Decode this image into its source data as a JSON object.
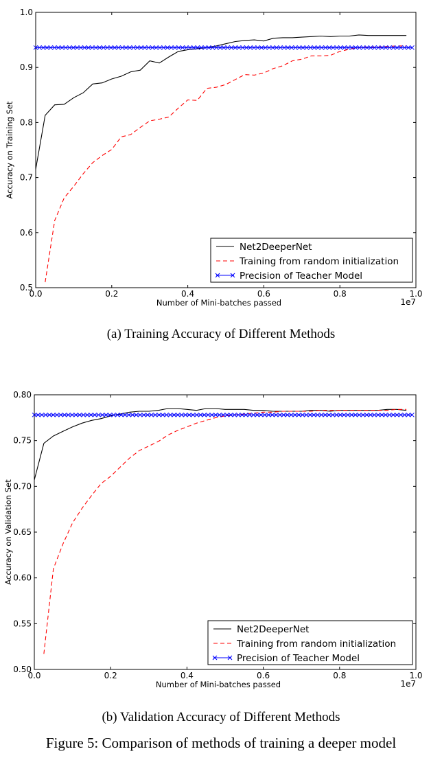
{
  "chart_data": [
    {
      "type": "line",
      "panel_label": "(a)",
      "caption": "Training Accuracy of Different Methods",
      "xlabel": "Number of Mini-batches passed",
      "ylabel": "Accuracy on Training Set",
      "x_offset_text": "1e7",
      "xlim": [
        0.0,
        1.0
      ],
      "ylim": [
        0.5,
        1.0
      ],
      "xticks": [
        "0.0",
        "0.2",
        "0.4",
        "0.6",
        "0.8",
        "1.0"
      ],
      "yticks": [
        "0.5",
        "0.6",
        "0.7",
        "0.8",
        "0.9",
        "1.0"
      ],
      "grid": false,
      "legend_position": "lower right",
      "series": [
        {
          "name": "Net2DeeperNet",
          "color": "#000000",
          "style": "solid",
          "x": [
            0.0,
            0.025,
            0.05,
            0.075,
            0.1,
            0.125,
            0.15,
            0.175,
            0.2,
            0.225,
            0.25,
            0.275,
            0.3,
            0.325,
            0.35,
            0.375,
            0.4,
            0.425,
            0.45,
            0.475,
            0.5,
            0.525,
            0.55,
            0.575,
            0.6,
            0.625,
            0.65,
            0.675,
            0.7,
            0.725,
            0.75,
            0.775,
            0.8,
            0.825,
            0.85,
            0.875,
            0.9,
            0.925,
            0.95,
            0.975
          ],
          "y": [
            0.715,
            0.813,
            0.832,
            0.833,
            0.845,
            0.854,
            0.87,
            0.872,
            0.879,
            0.884,
            0.892,
            0.895,
            0.912,
            0.908,
            0.919,
            0.929,
            0.932,
            0.934,
            0.936,
            0.939,
            0.943,
            0.947,
            0.949,
            0.95,
            0.948,
            0.953,
            0.954,
            0.954,
            0.955,
            0.956,
            0.957,
            0.956,
            0.957,
            0.957,
            0.959,
            0.958,
            0.958,
            0.958,
            0.958,
            0.958
          ]
        },
        {
          "name": "Training from random initialization",
          "color": "#ff0000",
          "style": "dashed",
          "x": [
            0.025,
            0.05,
            0.075,
            0.1,
            0.125,
            0.15,
            0.175,
            0.2,
            0.225,
            0.25,
            0.275,
            0.3,
            0.325,
            0.35,
            0.375,
            0.4,
            0.425,
            0.45,
            0.475,
            0.5,
            0.525,
            0.55,
            0.575,
            0.6,
            0.625,
            0.65,
            0.675,
            0.7,
            0.725,
            0.75,
            0.775,
            0.8,
            0.825,
            0.85,
            0.875,
            0.9,
            0.925,
            0.95,
            0.975
          ],
          "y": [
            0.51,
            0.622,
            0.663,
            0.684,
            0.707,
            0.727,
            0.74,
            0.751,
            0.774,
            0.778,
            0.791,
            0.803,
            0.806,
            0.81,
            0.826,
            0.841,
            0.84,
            0.862,
            0.864,
            0.869,
            0.878,
            0.887,
            0.886,
            0.89,
            0.898,
            0.903,
            0.912,
            0.915,
            0.921,
            0.921,
            0.922,
            0.929,
            0.933,
            0.936,
            0.937,
            0.937,
            0.938,
            0.939,
            0.939
          ]
        },
        {
          "name": "Precision of Teacher Model",
          "color": "#0000ff",
          "style": "solid",
          "marker": "x",
          "x": [
            0.0,
            0.99
          ],
          "y": [
            0.936,
            0.936
          ]
        }
      ]
    },
    {
      "type": "line",
      "panel_label": "(b)",
      "caption": "Validation Accuracy of Different Methods",
      "xlabel": "Number of Mini-batches passed",
      "ylabel": "Accuracy on Validation Set",
      "x_offset_text": "1e7",
      "xlim": [
        0.0,
        1.0
      ],
      "ylim": [
        0.5,
        0.8
      ],
      "xticks": [
        "0.0",
        "0.2",
        "0.4",
        "0.6",
        "0.8",
        "1.0"
      ],
      "yticks": [
        "0.50",
        "0.55",
        "0.60",
        "0.65",
        "0.70",
        "0.75",
        "0.80"
      ],
      "grid": false,
      "legend_position": "lower right",
      "series": [
        {
          "name": "Net2DeeperNet",
          "color": "#000000",
          "style": "solid",
          "x": [
            0.0,
            0.025,
            0.05,
            0.075,
            0.1,
            0.125,
            0.15,
            0.175,
            0.2,
            0.225,
            0.25,
            0.275,
            0.3,
            0.325,
            0.35,
            0.375,
            0.4,
            0.425,
            0.45,
            0.475,
            0.5,
            0.525,
            0.55,
            0.575,
            0.6,
            0.625,
            0.65,
            0.675,
            0.7,
            0.725,
            0.75,
            0.775,
            0.8,
            0.825,
            0.85,
            0.875,
            0.9,
            0.925,
            0.95,
            0.975
          ],
          "y": [
            0.707,
            0.747,
            0.755,
            0.76,
            0.765,
            0.769,
            0.772,
            0.774,
            0.777,
            0.779,
            0.781,
            0.782,
            0.782,
            0.783,
            0.785,
            0.785,
            0.784,
            0.783,
            0.785,
            0.785,
            0.784,
            0.784,
            0.784,
            0.783,
            0.783,
            0.782,
            0.782,
            0.782,
            0.782,
            0.783,
            0.783,
            0.782,
            0.783,
            0.783,
            0.783,
            0.783,
            0.783,
            0.784,
            0.784,
            0.783
          ]
        },
        {
          "name": "Training from random initialization",
          "color": "#ff0000",
          "style": "dashed",
          "x": [
            0.025,
            0.05,
            0.075,
            0.1,
            0.125,
            0.15,
            0.175,
            0.2,
            0.225,
            0.25,
            0.275,
            0.3,
            0.325,
            0.35,
            0.375,
            0.4,
            0.425,
            0.45,
            0.475,
            0.5,
            0.525,
            0.55,
            0.575,
            0.6,
            0.625,
            0.65,
            0.675,
            0.7,
            0.725,
            0.75,
            0.775,
            0.8,
            0.825,
            0.85,
            0.875,
            0.9,
            0.925,
            0.95,
            0.975
          ],
          "y": [
            0.517,
            0.61,
            0.637,
            0.66,
            0.676,
            0.69,
            0.703,
            0.711,
            0.721,
            0.731,
            0.739,
            0.744,
            0.749,
            0.756,
            0.761,
            0.765,
            0.769,
            0.772,
            0.775,
            0.777,
            0.778,
            0.779,
            0.78,
            0.781,
            0.781,
            0.782,
            0.782,
            0.782,
            0.782,
            0.783,
            0.783,
            0.783,
            0.783,
            0.783,
            0.783,
            0.783,
            0.783,
            0.784,
            0.784
          ]
        },
        {
          "name": "Precision of Teacher Model",
          "color": "#0000ff",
          "style": "solid",
          "marker": "x",
          "x": [
            0.0,
            0.99
          ],
          "y": [
            0.778,
            0.778
          ]
        }
      ]
    }
  ],
  "figure_caption": "Figure 5: Comparison of methods of training a deeper model",
  "panel_captions": [
    "(a)  Training Accuracy of Different Methods",
    "(b)  Validation Accuracy of Different Methods"
  ]
}
